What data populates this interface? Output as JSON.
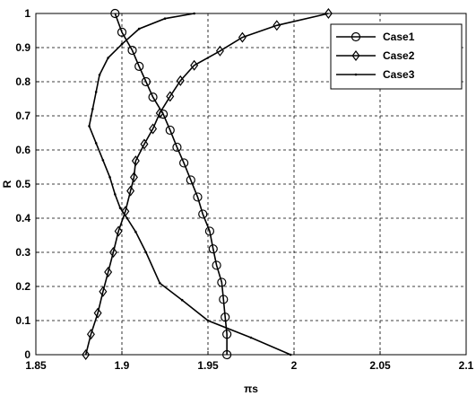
{
  "chart_data": {
    "type": "line",
    "xlabel": "πs",
    "ylabel": "R",
    "xlim": [
      1.85,
      2.1
    ],
    "ylim": [
      0,
      1
    ],
    "grid": true,
    "legend_position": "top-right",
    "x_ticks": [
      "1.85",
      "1.9",
      "1.95",
      "2",
      "2.05",
      "2.1"
    ],
    "y_ticks": [
      "0",
      "0.1",
      "0.2",
      "0.3",
      "0.4",
      "0.5",
      "0.6",
      "0.7",
      "0.8",
      "0.9",
      "1"
    ],
    "series": [
      {
        "name": "Case1",
        "marker": "circle",
        "points": [
          [
            1.896,
            1.0
          ],
          [
            1.9,
            0.945
          ],
          [
            1.906,
            0.892
          ],
          [
            1.91,
            0.845
          ],
          [
            1.914,
            0.8
          ],
          [
            1.918,
            0.755
          ],
          [
            1.924,
            0.705
          ],
          [
            1.928,
            0.658
          ],
          [
            1.932,
            0.608
          ],
          [
            1.936,
            0.562
          ],
          [
            1.94,
            0.512
          ],
          [
            1.944,
            0.462
          ],
          [
            1.947,
            0.412
          ],
          [
            1.951,
            0.362
          ],
          [
            1.953,
            0.31
          ],
          [
            1.955,
            0.262
          ],
          [
            1.958,
            0.212
          ],
          [
            1.959,
            0.162
          ],
          [
            1.96,
            0.11
          ],
          [
            1.961,
            0.06
          ],
          [
            1.961,
            0.0
          ]
        ]
      },
      {
        "name": "Case2",
        "marker": "diamond",
        "points": [
          [
            1.879,
            0.0
          ],
          [
            1.882,
            0.06
          ],
          [
            1.886,
            0.122
          ],
          [
            1.889,
            0.185
          ],
          [
            1.892,
            0.242
          ],
          [
            1.895,
            0.3
          ],
          [
            1.898,
            0.362
          ],
          [
            1.902,
            0.42
          ],
          [
            1.905,
            0.48
          ],
          [
            1.907,
            0.52
          ],
          [
            1.908,
            0.568
          ],
          [
            1.913,
            0.617
          ],
          [
            1.918,
            0.662
          ],
          [
            1.922,
            0.708
          ],
          [
            1.928,
            0.757
          ],
          [
            1.934,
            0.803
          ],
          [
            1.942,
            0.848
          ],
          [
            1.957,
            0.89
          ],
          [
            1.97,
            0.93
          ],
          [
            1.99,
            0.965
          ],
          [
            2.02,
            1.0
          ]
        ]
      },
      {
        "name": "Case3",
        "marker": "dot",
        "points": [
          [
            1.942,
            1.0
          ],
          [
            1.925,
            0.985
          ],
          [
            1.91,
            0.955
          ],
          [
            1.9,
            0.91
          ],
          [
            1.892,
            0.87
          ],
          [
            1.887,
            0.82
          ],
          [
            1.885,
            0.77
          ],
          [
            1.883,
            0.72
          ],
          [
            1.881,
            0.67
          ],
          [
            1.885,
            0.62
          ],
          [
            1.889,
            0.57
          ],
          [
            1.893,
            0.52
          ],
          [
            1.896,
            0.47
          ],
          [
            1.899,
            0.43
          ],
          [
            1.903,
            0.4
          ],
          [
            1.908,
            0.36
          ],
          [
            1.914,
            0.3
          ],
          [
            1.922,
            0.21
          ],
          [
            1.935,
            0.16
          ],
          [
            1.95,
            0.1
          ],
          [
            1.975,
            0.05
          ],
          [
            1.998,
            0.0
          ]
        ]
      }
    ]
  }
}
